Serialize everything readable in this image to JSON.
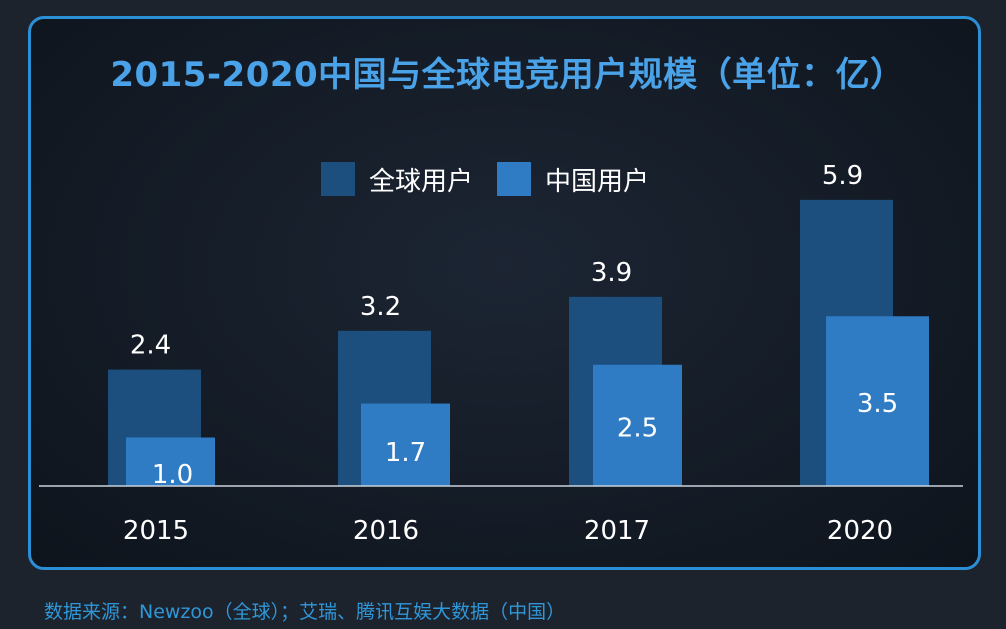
{
  "source_note": "数据来源：Newzoo（全球）；艾瑞、腾讯互娱大数据（中国）",
  "chart_data": {
    "type": "bar",
    "title": "2015-2020中国与全球电竞用户规模（单位：亿）",
    "xlabel": "",
    "ylabel": "",
    "categories": [
      "2015",
      "2016",
      "2017",
      "2020"
    ],
    "series": [
      {
        "name": "全球用户",
        "values": [
          2.4,
          3.2,
          3.9,
          5.9
        ],
        "color": "#1d4f7e"
      },
      {
        "name": "中国用户",
        "values": [
          1.0,
          1.7,
          2.5,
          3.5
        ],
        "color": "#2f7cc4"
      }
    ],
    "ylim": [
      0,
      6
    ],
    "grid": false,
    "legend_position": "top"
  }
}
